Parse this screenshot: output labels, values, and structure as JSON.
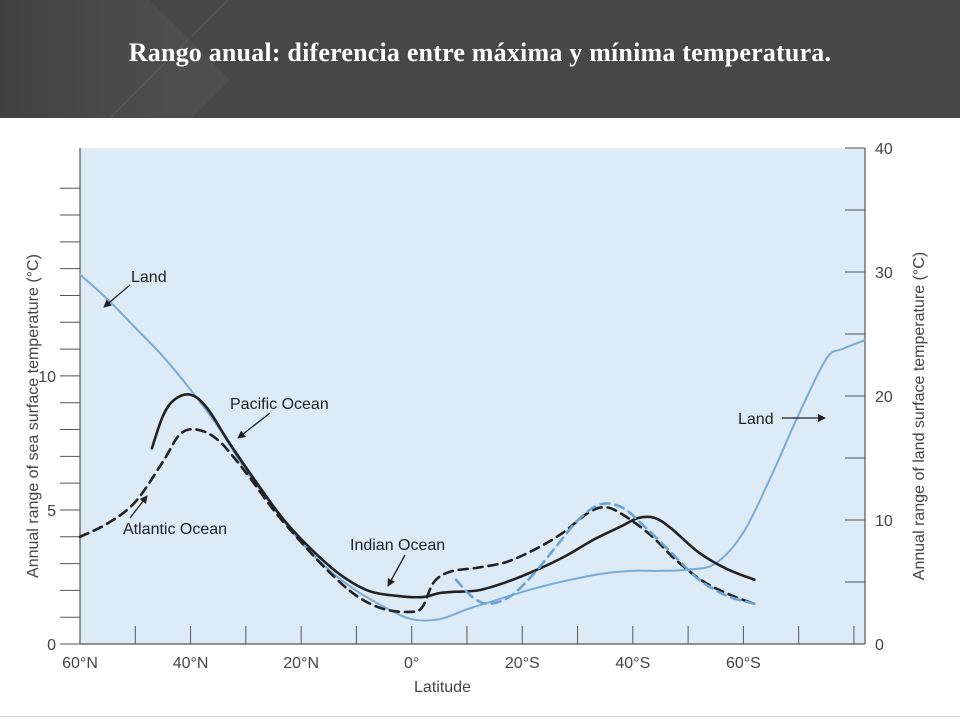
{
  "header": {
    "title": "Rango anual: diferencia entre máxima y mínima temperatura."
  },
  "colors": {
    "header_bg": "#474747",
    "plot_bg": "#dcebf6",
    "land": "#7aaad6",
    "ocean": "#222222",
    "indian": "#6aa2d4"
  },
  "chart_data": {
    "type": "line",
    "xlabel": "Latitude",
    "ylabel_left": "Annual range of sea surface temperature (°C)",
    "ylabel_right": "Annual range of land surface temperature (°C)",
    "x_ticks": [
      {
        "value": 60,
        "label": "60°N"
      },
      {
        "value": 40,
        "label": "40°N"
      },
      {
        "value": 20,
        "label": "20°N"
      },
      {
        "value": 0,
        "label": "0°"
      },
      {
        "value": -20,
        "label": "20°S"
      },
      {
        "value": -40,
        "label": "40°S"
      },
      {
        "value": -60,
        "label": "60°S"
      }
    ],
    "xlim": [
      60,
      -82
    ],
    "ylim_left": [
      0,
      18.5
    ],
    "ylim_right": [
      0,
      40
    ],
    "left_ticks": [
      0,
      5,
      10
    ],
    "right_ticks": [
      0,
      10,
      20,
      30,
      40
    ],
    "grid": false,
    "series": [
      {
        "name": "Land",
        "axis": "right",
        "style": "solid",
        "color": "#7aaad6",
        "points": [
          [
            60,
            29.8
          ],
          [
            55,
            27.8
          ],
          [
            50,
            25.5
          ],
          [
            45,
            23.2
          ],
          [
            40,
            20.5
          ],
          [
            35,
            17.5
          ],
          [
            30,
            14.0
          ],
          [
            25,
            11.0
          ],
          [
            20,
            8.2
          ],
          [
            15,
            6.0
          ],
          [
            10,
            4.3
          ],
          [
            5,
            3.0
          ],
          [
            0,
            2.0
          ],
          [
            -5,
            2.0
          ],
          [
            -10,
            2.8
          ],
          [
            -15,
            3.5
          ],
          [
            -20,
            4.2
          ],
          [
            -25,
            4.8
          ],
          [
            -30,
            5.3
          ],
          [
            -35,
            5.7
          ],
          [
            -40,
            5.9
          ],
          [
            -45,
            5.9
          ],
          [
            -50,
            6.0
          ],
          [
            -55,
            6.5
          ],
          [
            -60,
            9.0
          ],
          [
            -65,
            13.5
          ],
          [
            -70,
            18.5
          ],
          [
            -75,
            23.0
          ],
          [
            -78,
            23.8
          ],
          [
            -82,
            24.5
          ]
        ]
      },
      {
        "name": "Pacific Ocean",
        "axis": "left",
        "style": "solid",
        "color": "#222222",
        "points": [
          [
            47,
            7.3
          ],
          [
            45,
            8.5
          ],
          [
            43,
            9.1
          ],
          [
            40,
            9.3
          ],
          [
            37,
            8.8
          ],
          [
            33,
            7.5
          ],
          [
            28,
            6.0
          ],
          [
            23,
            4.6
          ],
          [
            18,
            3.5
          ],
          [
            13,
            2.6
          ],
          [
            8,
            2.0
          ],
          [
            3,
            1.8
          ],
          [
            -2,
            1.75
          ],
          [
            -5,
            1.9
          ],
          [
            -8,
            1.95
          ],
          [
            -12,
            2.0
          ],
          [
            -17,
            2.3
          ],
          [
            -23,
            2.8
          ],
          [
            -28,
            3.3
          ],
          [
            -33,
            3.9
          ],
          [
            -38,
            4.4
          ],
          [
            -41,
            4.7
          ],
          [
            -44,
            4.7
          ],
          [
            -47,
            4.3
          ],
          [
            -52,
            3.4
          ],
          [
            -57,
            2.8
          ],
          [
            -62,
            2.4
          ]
        ]
      },
      {
        "name": "Atlantic Ocean",
        "axis": "left",
        "style": "dashed",
        "color": "#222222",
        "points": [
          [
            60,
            4.0
          ],
          [
            55,
            4.5
          ],
          [
            50,
            5.3
          ],
          [
            45,
            6.8
          ],
          [
            42,
            7.8
          ],
          [
            39,
            8.0
          ],
          [
            35,
            7.6
          ],
          [
            30,
            6.4
          ],
          [
            25,
            5.0
          ],
          [
            20,
            3.8
          ],
          [
            15,
            2.7
          ],
          [
            10,
            1.8
          ],
          [
            5,
            1.3
          ],
          [
            0,
            1.2
          ],
          [
            -2,
            1.4
          ],
          [
            -4,
            2.3
          ],
          [
            -7,
            2.7
          ],
          [
            -12,
            2.85
          ],
          [
            -17,
            3.05
          ],
          [
            -22,
            3.5
          ],
          [
            -27,
            4.1
          ],
          [
            -32,
            4.9
          ],
          [
            -35,
            5.1
          ],
          [
            -38,
            4.85
          ],
          [
            -43,
            4.1
          ],
          [
            -48,
            3.1
          ],
          [
            -53,
            2.3
          ],
          [
            -58,
            1.8
          ],
          [
            -62,
            1.5
          ]
        ]
      },
      {
        "name": "Indian Ocean",
        "axis": "left",
        "style": "dashed",
        "color": "#6aa2d4",
        "points": [
          [
            -8,
            2.4
          ],
          [
            -11,
            1.75
          ],
          [
            -14,
            1.5
          ],
          [
            -18,
            1.8
          ],
          [
            -22,
            2.6
          ],
          [
            -26,
            3.6
          ],
          [
            -30,
            4.6
          ],
          [
            -34,
            5.2
          ],
          [
            -38,
            5.1
          ],
          [
            -42,
            4.4
          ],
          [
            -47,
            3.4
          ],
          [
            -52,
            2.4
          ],
          [
            -57,
            1.8
          ],
          [
            -62,
            1.5
          ]
        ]
      }
    ],
    "annotations": [
      {
        "text": "Land",
        "ref": "Land"
      },
      {
        "text": "Pacific Ocean",
        "ref": "Pacific Ocean"
      },
      {
        "text": "Atlantic Ocean",
        "ref": "Atlantic Ocean"
      },
      {
        "text": "Indian Ocean",
        "ref": "Indian Ocean"
      },
      {
        "text": "Land",
        "ref": "Land"
      }
    ]
  }
}
